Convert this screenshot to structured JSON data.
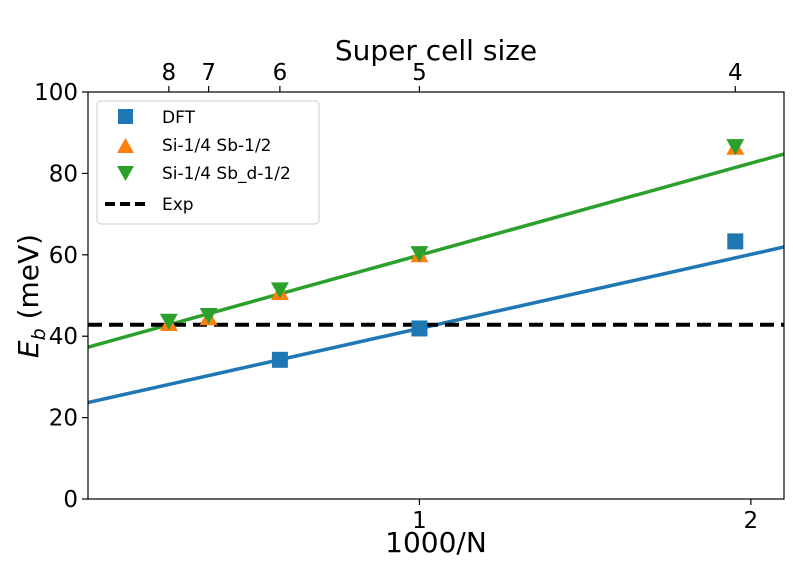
{
  "chart_data": {
    "type": "scatter",
    "xlabel": "1000/N",
    "ylabel_main": "E",
    "ylabel_sub": "b",
    "ylabel_unit": " (meV)",
    "top_xlabel": "Super cell size",
    "xlim": [
      0,
      2.1
    ],
    "ylim": [
      0,
      100
    ],
    "x_ticks": [
      {
        "value": 1,
        "label": "1"
      },
      {
        "value": 2,
        "label": "2"
      }
    ],
    "y_ticks": [
      {
        "value": 0,
        "label": "0"
      },
      {
        "value": 20,
        "label": "20"
      },
      {
        "value": 40,
        "label": "40"
      },
      {
        "value": 60,
        "label": "60"
      },
      {
        "value": 80,
        "label": "80"
      },
      {
        "value": 100,
        "label": "100"
      }
    ],
    "top_ticks": [
      {
        "value": 0.244,
        "label": "8"
      },
      {
        "value": 0.364,
        "label": "7"
      },
      {
        "value": 0.579,
        "label": "6"
      },
      {
        "value": 1.0,
        "label": "5"
      },
      {
        "value": 1.953,
        "label": "4"
      }
    ],
    "series": [
      {
        "name": "DFT",
        "marker": "square",
        "color": "#1f77b4",
        "points": [
          [
            0.579,
            34.2
          ],
          [
            1.0,
            41.9
          ],
          [
            1.953,
            63.3
          ]
        ]
      },
      {
        "name": "Si-1/4 Sb-1/2",
        "marker": "triangle-up",
        "color": "#ff7f0e",
        "points": [
          [
            0.244,
            43.0
          ],
          [
            0.364,
            44.4
          ],
          [
            0.579,
            50.6
          ],
          [
            1.0,
            59.9
          ],
          [
            1.953,
            86.3
          ]
        ]
      },
      {
        "name": "Si-1/4 Sb_d-1/2",
        "marker": "triangle-down",
        "color": "#2ca02c",
        "points": [
          [
            0.244,
            43.8
          ],
          [
            0.364,
            45.2
          ],
          [
            0.579,
            51.5
          ],
          [
            1.0,
            60.4
          ],
          [
            1.953,
            86.7
          ]
        ]
      }
    ],
    "fits": [
      {
        "name": "DFT fit",
        "color": "#1f77b4",
        "intercept": 23.7,
        "slope": 18.2
      },
      {
        "name": "Sb fit",
        "color": "#2ca02c",
        "intercept": 37.3,
        "slope": 22.6
      }
    ],
    "reference_line": {
      "name": "Exp",
      "value": 42.8,
      "style": "dashed",
      "color": "#000000"
    },
    "legend": {
      "position": "top-left",
      "entries": [
        "DFT",
        "Si-1/4 Sb-1/2",
        "Si-1/4 Sb_d-1/2",
        "Exp"
      ]
    }
  }
}
